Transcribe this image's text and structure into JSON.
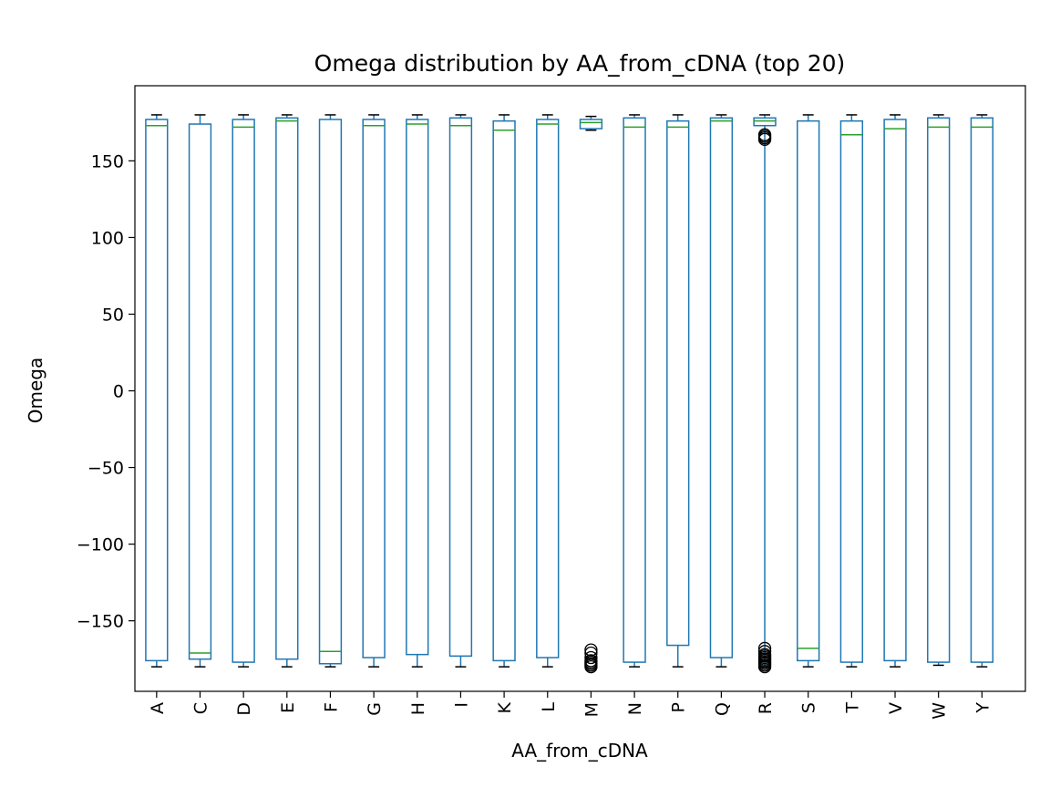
{
  "chart_data": {
    "type": "box",
    "title": "Omega distribution by AA_from_cDNA (top 20)",
    "xlabel": "AA_from_cDNA",
    "ylabel": "Omega",
    "ylim": [
      -196,
      199
    ],
    "yticks": [
      -150,
      -100,
      -50,
      0,
      50,
      100,
      150
    ],
    "ytick_labels": [
      "−150",
      "−100",
      "−50",
      "0",
      "50",
      "100",
      "150"
    ],
    "grid": false,
    "colors": {
      "box": "#1f77b4",
      "median": "#2ca02c",
      "whisker_cap": "#000000",
      "flier": "#000000"
    },
    "categories": [
      "A",
      "C",
      "D",
      "E",
      "F",
      "G",
      "H",
      "I",
      "K",
      "L",
      "M",
      "N",
      "P",
      "Q",
      "R",
      "S",
      "T",
      "V",
      "W",
      "Y"
    ],
    "boxes": [
      {
        "label": "A",
        "whislo": -180,
        "q1": -176,
        "med": 173,
        "q3": 177,
        "whishi": 180,
        "fliers": []
      },
      {
        "label": "C",
        "whislo": -180,
        "q1": -175,
        "med": -171,
        "q3": 174,
        "whishi": 180,
        "fliers": []
      },
      {
        "label": "D",
        "whislo": -180,
        "q1": -177,
        "med": 172,
        "q3": 177,
        "whishi": 180,
        "fliers": []
      },
      {
        "label": "E",
        "whislo": -180,
        "q1": -175,
        "med": 176,
        "q3": 178,
        "whishi": 180,
        "fliers": []
      },
      {
        "label": "F",
        "whislo": -180,
        "q1": -178,
        "med": -170,
        "q3": 177,
        "whishi": 180,
        "fliers": []
      },
      {
        "label": "G",
        "whislo": -180,
        "q1": -174,
        "med": 173,
        "q3": 177,
        "whishi": 180,
        "fliers": []
      },
      {
        "label": "H",
        "whislo": -180,
        "q1": -172,
        "med": 174,
        "q3": 177,
        "whishi": 180,
        "fliers": []
      },
      {
        "label": "I",
        "whislo": -180,
        "q1": -173,
        "med": 173,
        "q3": 178,
        "whishi": 180,
        "fliers": []
      },
      {
        "label": "K",
        "whislo": -180,
        "q1": -176,
        "med": 170,
        "q3": 176,
        "whishi": 180,
        "fliers": []
      },
      {
        "label": "L",
        "whislo": -180,
        "q1": -174,
        "med": 174,
        "q3": 177,
        "whishi": 180,
        "fliers": []
      },
      {
        "label": "M",
        "whislo": 170,
        "q1": 171,
        "med": 175,
        "q3": 177,
        "whishi": 179,
        "fliers": [
          -169,
          -171,
          -174,
          -176,
          -177,
          -178,
          -179,
          -180
        ]
      },
      {
        "label": "N",
        "whislo": -180,
        "q1": -177,
        "med": 172,
        "q3": 178,
        "whishi": 180,
        "fliers": []
      },
      {
        "label": "P",
        "whislo": -180,
        "q1": -166,
        "med": 172,
        "q3": 176,
        "whishi": 180,
        "fliers": []
      },
      {
        "label": "Q",
        "whislo": -180,
        "q1": -174,
        "med": 176,
        "q3": 178,
        "whishi": 180,
        "fliers": []
      },
      {
        "label": "R",
        "whislo": -180,
        "q1": 173,
        "med": 176,
        "q3": 178,
        "whishi": 180,
        "fliers": [
          167,
          166,
          165,
          164,
          -168,
          -170,
          -172,
          -173,
          -174,
          -175,
          -176,
          -177,
          -178,
          -179,
          -180
        ]
      },
      {
        "label": "S",
        "whislo": -180,
        "q1": -176,
        "med": -168,
        "q3": 176,
        "whishi": 180,
        "fliers": []
      },
      {
        "label": "T",
        "whislo": -180,
        "q1": -177,
        "med": 167,
        "q3": 176,
        "whishi": 180,
        "fliers": []
      },
      {
        "label": "V",
        "whislo": -180,
        "q1": -176,
        "med": 171,
        "q3": 177,
        "whishi": 180,
        "fliers": []
      },
      {
        "label": "W",
        "whislo": -179,
        "q1": -177,
        "med": 172,
        "q3": 178,
        "whishi": 180,
        "fliers": []
      },
      {
        "label": "Y",
        "whislo": -180,
        "q1": -177,
        "med": 172,
        "q3": 178,
        "whishi": 180,
        "fliers": []
      }
    ]
  }
}
